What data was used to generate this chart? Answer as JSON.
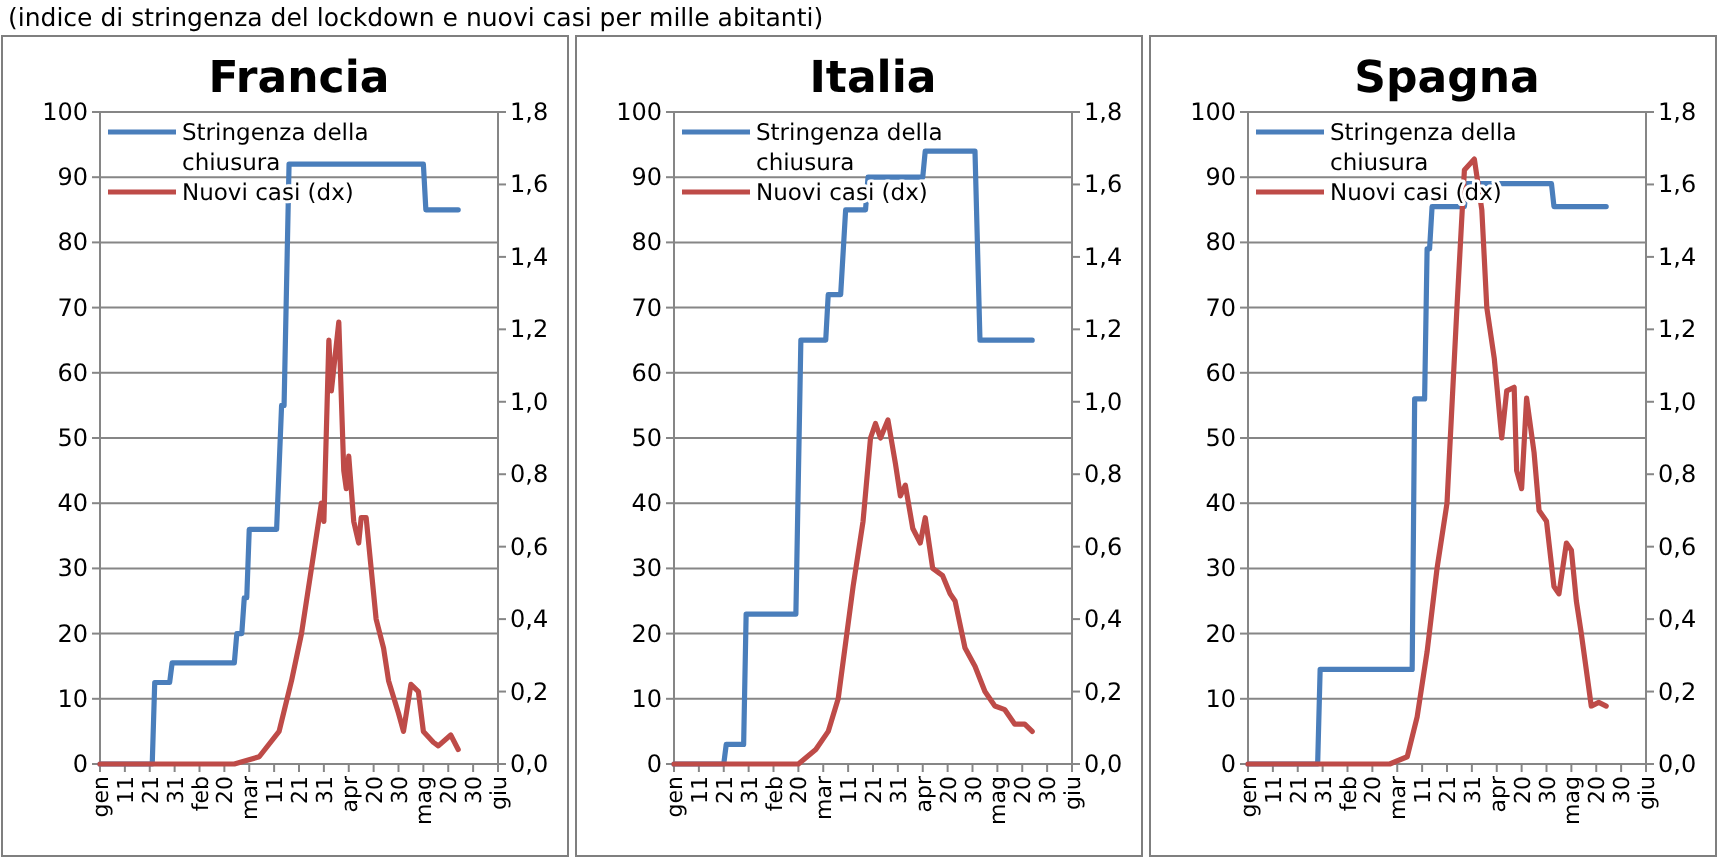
{
  "chart_data": [
    {
      "type": "line",
      "title": "Francia",
      "subtitle": "(indice di stringenza del lockdown e nuovi casi per mille abitanti)",
      "xlim": [
        "--01-01",
        "--06-09"
      ],
      "xticks": [
        {
          "value": "--01-01",
          "label": "gen"
        },
        {
          "value": "--01-11",
          "label": "11"
        },
        {
          "value": "--01-21",
          "label": "21"
        },
        {
          "value": "--01-31",
          "label": "31"
        },
        {
          "value": "--02-10",
          "label": "feb"
        },
        {
          "value": "--02-20",
          "label": "20"
        },
        {
          "value": "--03-01",
          "label": "mar"
        },
        {
          "value": "--03-11",
          "label": "11"
        },
        {
          "value": "--03-21",
          "label": "21"
        },
        {
          "value": "--03-31",
          "label": "31"
        },
        {
          "value": "--04-10",
          "label": "apr"
        },
        {
          "value": "--04-20",
          "label": "20"
        },
        {
          "value": "--04-30",
          "label": "30"
        },
        {
          "value": "--05-10",
          "label": "mag"
        },
        {
          "value": "--05-20",
          "label": "20"
        },
        {
          "value": "--05-30",
          "label": "30"
        },
        {
          "value": "--06-09",
          "label": "giu"
        }
      ],
      "ylim": [
        0,
        100
      ],
      "yticks": [
        0,
        10,
        20,
        30,
        40,
        50,
        60,
        70,
        80,
        90,
        100
      ],
      "y2lim": [
        0,
        1.8
      ],
      "y2ticks": [
        {
          "value": 0,
          "label": "0,0"
        },
        {
          "value": 0.2,
          "label": "0,2"
        },
        {
          "value": 0.4,
          "label": "0,4"
        },
        {
          "value": 0.6,
          "label": "0,6"
        },
        {
          "value": 0.8,
          "label": "0,8"
        },
        {
          "value": 1,
          "label": "1,0"
        },
        {
          "value": 1.2,
          "label": "1,2"
        },
        {
          "value": 1.4,
          "label": "1,4"
        },
        {
          "value": 1.6,
          "label": "1,6"
        },
        {
          "value": 1.8,
          "label": "1,8"
        }
      ],
      "grid": "y",
      "legend": "top left",
      "series": [
        {
          "name": "Stringenza della chiusura",
          "color": "#4a7ebb",
          "x": [
            "--01-01",
            "--01-22",
            "--01-23",
            "--01-29",
            "--01-30",
            "--02-24",
            "--02-25",
            "--02-27",
            "--02-28",
            "--02-29",
            "--03-01",
            "--03-12",
            "--03-14",
            "--03-15",
            "--03-17",
            "--05-10",
            "--05-11",
            "--05-24"
          ],
          "values": [
            0,
            0,
            12.5,
            12.5,
            15.5,
            15.5,
            20,
            20,
            25.5,
            25.5,
            36,
            36,
            55,
            55,
            92,
            92,
            85,
            85
          ]
        },
        {
          "name": "Nuovi casi (dx)",
          "color": "#be4b48",
          "axis": "y2",
          "x": [
            "--01-01",
            "--02-24",
            "--03-05",
            "--03-13",
            "--03-18",
            "--03-22",
            "--03-26",
            "--03-30",
            "--03-31",
            "--04-02",
            "--04-03",
            "--04-06",
            "--04-08",
            "--04-09",
            "--04-10",
            "--04-12",
            "--04-14",
            "--04-15",
            "--04-17",
            "--04-21",
            "--04-24",
            "--04-26",
            "--04-30",
            "--05-02",
            "--05-05",
            "--05-08",
            "--05-10",
            "--05-14",
            "--05-16",
            "--05-21",
            "--05-24"
          ],
          "values": [
            0,
            0,
            0.02,
            0.09,
            0.23,
            0.36,
            0.54,
            0.72,
            0.67,
            1.17,
            1.03,
            1.22,
            0.81,
            0.76,
            0.85,
            0.67,
            0.61,
            0.68,
            0.68,
            0.4,
            0.32,
            0.23,
            0.14,
            0.09,
            0.22,
            0.2,
            0.09,
            0.06,
            0.05,
            0.08,
            0.04
          ]
        }
      ]
    },
    {
      "type": "line",
      "title": "Italia",
      "xlim": [
        "--01-01",
        "--06-09"
      ],
      "xticks": [
        {
          "value": "--01-01",
          "label": "gen"
        },
        {
          "value": "--01-11",
          "label": "11"
        },
        {
          "value": "--01-21",
          "label": "21"
        },
        {
          "value": "--01-31",
          "label": "31"
        },
        {
          "value": "--02-10",
          "label": "feb"
        },
        {
          "value": "--02-20",
          "label": "20"
        },
        {
          "value": "--03-01",
          "label": "mar"
        },
        {
          "value": "--03-11",
          "label": "11"
        },
        {
          "value": "--03-21",
          "label": "21"
        },
        {
          "value": "--03-31",
          "label": "31"
        },
        {
          "value": "--04-10",
          "label": "apr"
        },
        {
          "value": "--04-20",
          "label": "20"
        },
        {
          "value": "--04-30",
          "label": "30"
        },
        {
          "value": "--05-10",
          "label": "mag"
        },
        {
          "value": "--05-20",
          "label": "20"
        },
        {
          "value": "--05-30",
          "label": "30"
        },
        {
          "value": "--06-09",
          "label": "giu"
        }
      ],
      "ylim": [
        0,
        100
      ],
      "yticks": [
        0,
        10,
        20,
        30,
        40,
        50,
        60,
        70,
        80,
        90,
        100
      ],
      "y2lim": [
        0,
        1.8
      ],
      "y2ticks": [
        {
          "value": 0,
          "label": "0,0"
        },
        {
          "value": 0.2,
          "label": "0,2"
        },
        {
          "value": 0.4,
          "label": "0,4"
        },
        {
          "value": 0.6,
          "label": "0,6"
        },
        {
          "value": 0.8,
          "label": "0,8"
        },
        {
          "value": 1,
          "label": "1,0"
        },
        {
          "value": 1.2,
          "label": "1,2"
        },
        {
          "value": 1.4,
          "label": "1,4"
        },
        {
          "value": 1.6,
          "label": "1,6"
        },
        {
          "value": 1.8,
          "label": "1,8"
        }
      ],
      "grid": "y",
      "legend": "top left",
      "series": [
        {
          "name": "Stringenza della chiusura",
          "color": "#4a7ebb",
          "x": [
            "--01-01",
            "--01-21",
            "--01-22",
            "--01-29",
            "--01-30",
            "--02-19",
            "--02-21",
            "--03-02",
            "--03-03",
            "--03-08",
            "--03-10",
            "--03-18",
            "--03-19",
            "--04-10",
            "--04-11",
            "--05-01",
            "--05-03",
            "--05-24"
          ],
          "values": [
            0,
            0,
            3,
            3,
            23,
            23,
            65,
            65,
            72,
            72,
            85,
            85,
            90,
            90,
            94,
            94,
            65,
            65
          ]
        },
        {
          "name": "Nuovi casi (dx)",
          "color": "#be4b48",
          "axis": "y2",
          "x": [
            "--01-01",
            "--02-20",
            "--02-27",
            "--03-03",
            "--03-07",
            "--03-13",
            "--03-17",
            "--03-20",
            "--03-22",
            "--03-24",
            "--03-27",
            "--03-30",
            "--04-01",
            "--04-03",
            "--04-06",
            "--04-09",
            "--04-11",
            "--04-14",
            "--04-18",
            "--04-21",
            "--04-23",
            "--04-27",
            "--05-01",
            "--05-05",
            "--05-09",
            "--05-13",
            "--05-17",
            "--05-21",
            "--05-24"
          ],
          "values": [
            0,
            0,
            0.04,
            0.09,
            0.18,
            0.49,
            0.67,
            0.9,
            0.94,
            0.9,
            0.95,
            0.83,
            0.74,
            0.77,
            0.65,
            0.61,
            0.68,
            0.54,
            0.52,
            0.47,
            0.45,
            0.32,
            0.27,
            0.2,
            0.16,
            0.15,
            0.11,
            0.11,
            0.09
          ]
        }
      ]
    },
    {
      "type": "line",
      "title": "Spagna",
      "xlim": [
        "--01-01",
        "--06-09"
      ],
      "xticks": [
        {
          "value": "--01-01",
          "label": "gen"
        },
        {
          "value": "--01-11",
          "label": "11"
        },
        {
          "value": "--01-21",
          "label": "21"
        },
        {
          "value": "--01-31",
          "label": "31"
        },
        {
          "value": "--02-10",
          "label": "feb"
        },
        {
          "value": "--02-20",
          "label": "20"
        },
        {
          "value": "--03-01",
          "label": "mar"
        },
        {
          "value": "--03-11",
          "label": "11"
        },
        {
          "value": "--03-21",
          "label": "21"
        },
        {
          "value": "--03-31",
          "label": "31"
        },
        {
          "value": "--04-10",
          "label": "apr"
        },
        {
          "value": "--04-20",
          "label": "20"
        },
        {
          "value": "--04-30",
          "label": "30"
        },
        {
          "value": "--05-10",
          "label": "mag"
        },
        {
          "value": "--05-20",
          "label": "20"
        },
        {
          "value": "--05-30",
          "label": "30"
        },
        {
          "value": "--06-09",
          "label": "giu"
        }
      ],
      "ylim": [
        0,
        100
      ],
      "yticks": [
        0,
        10,
        20,
        30,
        40,
        50,
        60,
        70,
        80,
        90,
        100
      ],
      "y2lim": [
        0,
        1.8
      ],
      "y2ticks": [
        {
          "value": 0,
          "label": "0,0"
        },
        {
          "value": 0.2,
          "label": "0,2"
        },
        {
          "value": 0.4,
          "label": "0,4"
        },
        {
          "value": 0.6,
          "label": "0,6"
        },
        {
          "value": 0.8,
          "label": "0,8"
        },
        {
          "value": 1,
          "label": "1,0"
        },
        {
          "value": 1.2,
          "label": "1,2"
        },
        {
          "value": 1.4,
          "label": "1,4"
        },
        {
          "value": 1.6,
          "label": "1,6"
        },
        {
          "value": 1.8,
          "label": "1,8"
        }
      ],
      "grid": "y",
      "legend": "top left",
      "series": [
        {
          "name": "Stringenza della chiusura",
          "color": "#4a7ebb",
          "x": [
            "--01-01",
            "--01-29",
            "--01-30",
            "--03-07",
            "--03-08",
            "--03-12",
            "--03-13",
            "--03-14",
            "--03-15",
            "--03-28",
            "--03-29",
            "--05-02",
            "--05-03",
            "--05-24"
          ],
          "values": [
            0,
            0,
            14.5,
            14.5,
            56,
            56,
            79,
            79,
            85.5,
            85.5,
            89,
            89,
            85.5,
            85.5
          ]
        },
        {
          "name": "Nuovi casi (dx)",
          "color": "#be4b48",
          "axis": "y2",
          "x": [
            "--01-01",
            "--02-27",
            "--03-05",
            "--03-09",
            "--03-13",
            "--03-17",
            "--03-21",
            "--03-25",
            "--03-28",
            "--04-01",
            "--04-04",
            "--04-06",
            "--04-09",
            "--04-12",
            "--04-14",
            "--04-17",
            "--04-18",
            "--04-20",
            "--04-22",
            "--04-25",
            "--04-27",
            "--04-30",
            "--05-03",
            "--05-05",
            "--05-08",
            "--05-10",
            "--05-12",
            "--05-14",
            "--05-18",
            "--05-21",
            "--05-24"
          ],
          "values": [
            0,
            0,
            0.02,
            0.13,
            0.31,
            0.54,
            0.72,
            1.26,
            1.64,
            1.67,
            1.53,
            1.26,
            1.12,
            0.9,
            1.03,
            1.04,
            0.81,
            0.76,
            1.01,
            0.86,
            0.7,
            0.67,
            0.49,
            0.47,
            0.61,
            0.59,
            0.45,
            0.36,
            0.16,
            0.17,
            0.16
          ]
        }
      ]
    }
  ]
}
